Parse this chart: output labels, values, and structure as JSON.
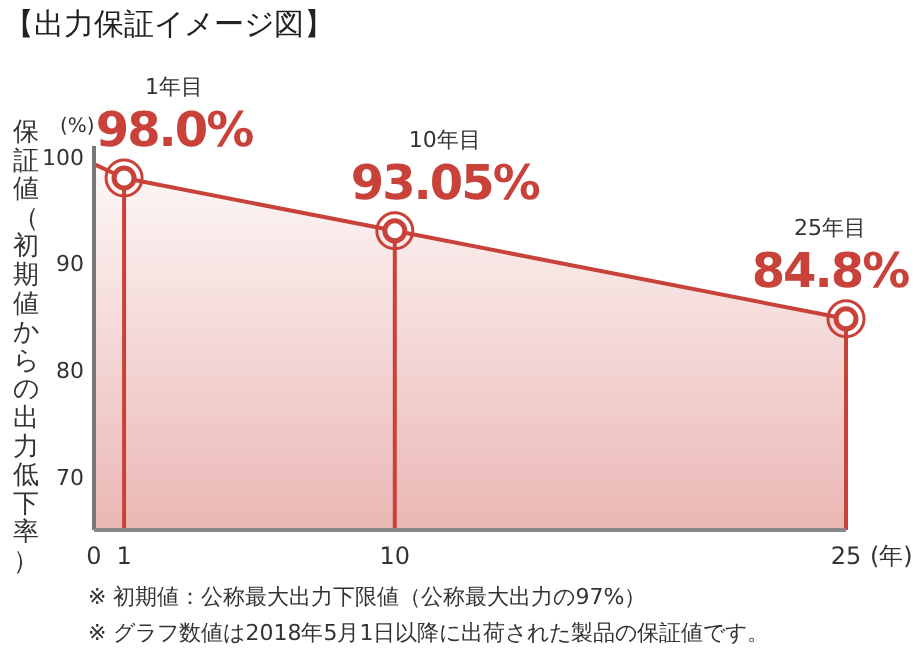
{
  "chart_data": {
    "type": "area",
    "title": "【出力保証イメージ図】",
    "xlabel": "(年)",
    "ylabel": "保証値（初期値からの出力低下率）",
    "x": [
      0,
      1,
      10,
      25
    ],
    "values": [
      99.3,
      98.0,
      93.05,
      84.8
    ],
    "value_labels": [
      null,
      "98.0%",
      "93.05%",
      "84.8%"
    ],
    "color": "#c8423a",
    "marker": "circle",
    "xlim": [
      0,
      25
    ],
    "ylim": [
      65,
      101
    ],
    "xticks": [
      0,
      1,
      10,
      25
    ],
    "yticks": [
      70,
      80,
      90,
      100
    ],
    "annotations": [
      "(%)",
      "1年目",
      "10年目",
      "25年目",
      "※ 初期値：公称最大出力下限値（公称最大出力の97%）",
      "※ グラフ数値は2018年5月1日以降に出荷された製品の保証値です。"
    ]
  }
}
